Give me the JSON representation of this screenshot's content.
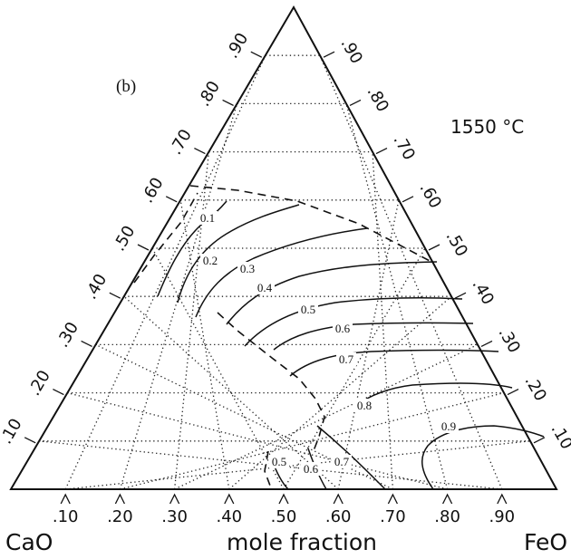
{
  "panel_label": "(b)",
  "temperature_label": "1550 °C",
  "corners": {
    "left": "CaO",
    "right": "FeO"
  },
  "bottom_axis_title": "mole fraction",
  "bottom_ticks": [
    ".10",
    ".20",
    ".30",
    ".40",
    ".50",
    ".60",
    ".70",
    ".80",
    ".90"
  ],
  "left_ticks": [
    ".10",
    ".20",
    ".30",
    ".40",
    ".50",
    ".60",
    ".70",
    ".80",
    ".90"
  ],
  "right_ticks": [
    ".10",
    ".20",
    ".30",
    ".40",
    ".50",
    ".60",
    ".70",
    ".80",
    ".90"
  ],
  "contours": [
    {
      "label": "0.1"
    },
    {
      "label": "0.2"
    },
    {
      "label": "0.3"
    },
    {
      "label": "0.4"
    },
    {
      "label": "0.5"
    },
    {
      "label": "0.6"
    },
    {
      "label": "0.7"
    },
    {
      "label": "0.8"
    },
    {
      "label": "0.9"
    },
    {
      "label": "0.5"
    },
    {
      "label": "0.6"
    },
    {
      "label": "0.7"
    }
  ]
}
